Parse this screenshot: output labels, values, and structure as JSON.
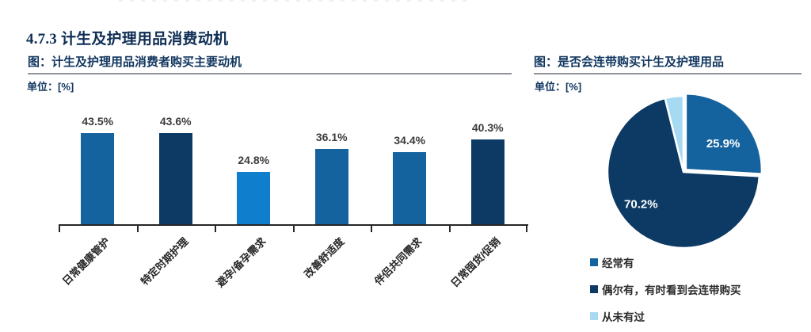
{
  "page": {
    "section_title": "4.7.3 计生及护理用品消费动机"
  },
  "colors": {
    "title_navy": "#11365f",
    "bar_medium_blue": "#15639e",
    "bar_dark_navy": "#0c3a64",
    "bar_light_blue": "#0f7ecd",
    "pie_pale_blue": "#a6daf3",
    "axis": "#262626",
    "underline_gray": "#8f949b",
    "value_label": "#3c3c3c"
  },
  "chart_data": [
    {
      "type": "bar",
      "title": "图：计生及护理用品消费者购买主要动机",
      "unit": "单位：[%]",
      "categories": [
        "日常健康管护",
        "特定时期护理",
        "避孕/备孕需求",
        "改善舒适度",
        "伴侣共同需求",
        "日常囤货/促销"
      ],
      "values": [
        43.5,
        43.6,
        24.8,
        36.1,
        34.4,
        40.3
      ],
      "data_labels": [
        "43.5%",
        "43.6%",
        "24.8%",
        "36.1%",
        "34.4%",
        "40.3%"
      ],
      "bar_colors": [
        "#15639e",
        "#0c3a64",
        "#0f7ecd",
        "#15639e",
        "#15639e",
        "#0c3a64"
      ],
      "xlabel": "",
      "ylabel": "",
      "ylim": [
        0,
        50
      ],
      "grid": false,
      "x_tick_rotation_deg": -45
    },
    {
      "type": "pie",
      "title": "图：是否会连带购买计生及护理用品",
      "unit": "单位：[%]",
      "start_angle_deg": 0,
      "direction": "clockwise",
      "legend_position": "bottom-left",
      "slices": [
        {
          "label": "经常有",
          "value": 25.9,
          "pct_label": "25.9%",
          "color": "#15639e",
          "exploded": true
        },
        {
          "label": "偶尔有，有时看到会连带购买",
          "value": 70.2,
          "pct_label": "70.2%",
          "color": "#0c3a64",
          "exploded": false
        },
        {
          "label": "从未有过",
          "value": 3.9,
          "pct_label": null,
          "color": "#a6daf3",
          "exploded": false
        }
      ]
    }
  ]
}
